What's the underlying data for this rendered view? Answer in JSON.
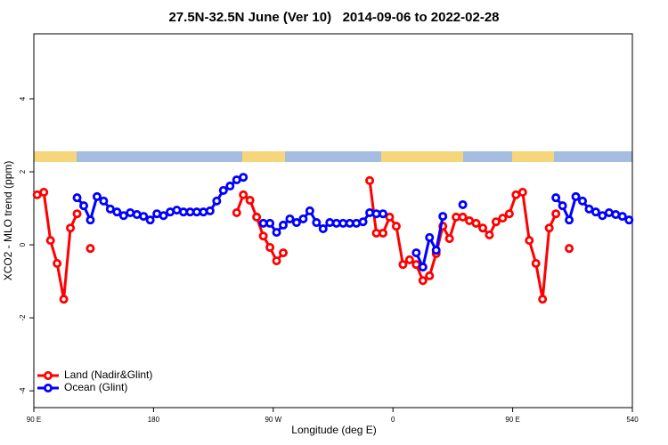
{
  "chart_data": {
    "type": "line",
    "title": "27.5N-32.5N June (Ver 10)   2014-09-06 to 2022-02-28",
    "x_label": "Longitude (deg E)",
    "y_label": "XCO2 - MLO trend (ppm)",
    "xlim": [
      90,
      540
    ],
    "ylim": [
      -4.46,
      5.78
    ],
    "xticks": [
      {
        "value": 90,
        "label": "90 E"
      },
      180,
      {
        "value": 270,
        "label": "90 W"
      },
      {
        "value": 360,
        "label": "0"
      },
      {
        "value": 450,
        "label": "90 E"
      },
      540
    ],
    "yticks": [
      -4,
      -2,
      0,
      2,
      4
    ],
    "legend": "bottom-left",
    "x": [
      92.5,
      97.5,
      102.5,
      107.5,
      112.5,
      117.5,
      122.5,
      127.5,
      132.5,
      137.5,
      142.5,
      147.5,
      152.5,
      157.5,
      162.5,
      167.5,
      172.5,
      177.5,
      182.5,
      187.5,
      192.5,
      197.5,
      202.5,
      207.5,
      212.5,
      217.5,
      222.5,
      227.5,
      232.5,
      237.5,
      242.5,
      247.5,
      252.5,
      257.5,
      262.5,
      267.5,
      272.5,
      277.5,
      282.5,
      287.5,
      292.5,
      297.5,
      302.5,
      307.5,
      312.5,
      317.5,
      322.5,
      327.5,
      332.5,
      337.5,
      342.5,
      347.5,
      352.5,
      357.5,
      362.5,
      367.5,
      372.5,
      377.5,
      382.5,
      387.5,
      392.5,
      397.5,
      402.5,
      407.5,
      412.5,
      417.5,
      422.5,
      427.5,
      432.5,
      437.5,
      442.5,
      447.5,
      452.5,
      457.5,
      462.5,
      467.5,
      472.5,
      477.5,
      482.5,
      487.5,
      492.5,
      497.5,
      502.5,
      507.5,
      512.5,
      517.5,
      522.5,
      527.5,
      532.5,
      537.5
    ],
    "series": [
      {
        "name": "Land (Nadir&Glint)",
        "color": "#ff0000",
        "values": [
          1.37,
          1.44,
          0.12,
          -0.51,
          -1.49,
          0.46,
          0.85,
          null,
          -0.1,
          null,
          null,
          null,
          null,
          null,
          null,
          null,
          null,
          null,
          null,
          null,
          null,
          null,
          null,
          null,
          null,
          null,
          null,
          null,
          null,
          null,
          0.88,
          1.37,
          1.22,
          0.76,
          0.24,
          -0.07,
          -0.44,
          -0.22,
          null,
          null,
          null,
          null,
          null,
          null,
          null,
          null,
          null,
          null,
          null,
          null,
          1.76,
          0.32,
          0.32,
          0.76,
          0.51,
          -0.54,
          -0.41,
          -0.54,
          -0.98,
          -0.85,
          -0.24,
          0.51,
          0.17,
          0.76,
          0.76,
          0.66,
          0.59,
          0.46,
          0.27,
          0.63,
          0.73,
          0.85,
          1.37,
          1.44,
          0.12,
          -0.51,
          -1.49,
          0.46,
          0.85,
          null,
          -0.1,
          null,
          null,
          null,
          null,
          null,
          null,
          null,
          null,
          null
        ]
      },
      {
        "name": "Ocean (Glint)",
        "color": "#0000ff",
        "values": [
          null,
          null,
          null,
          null,
          null,
          null,
          1.29,
          1.07,
          0.68,
          1.32,
          1.2,
          0.98,
          0.9,
          0.8,
          0.88,
          0.83,
          0.78,
          0.68,
          0.85,
          0.8,
          0.9,
          0.95,
          0.9,
          0.9,
          0.9,
          0.9,
          0.93,
          1.2,
          1.49,
          1.61,
          1.78,
          1.85,
          null,
          null,
          0.59,
          0.59,
          0.34,
          0.54,
          0.71,
          0.61,
          0.71,
          0.93,
          0.61,
          0.44,
          0.61,
          0.59,
          0.59,
          0.59,
          0.59,
          0.63,
          0.88,
          0.85,
          0.85,
          null,
          null,
          null,
          null,
          -0.22,
          -0.61,
          0.2,
          -0.15,
          0.78,
          null,
          null,
          1.1,
          null,
          null,
          null,
          null,
          null,
          null,
          null,
          null,
          null,
          null,
          null,
          null,
          null,
          1.29,
          1.07,
          0.68,
          1.32,
          1.2,
          0.98,
          0.9,
          0.8,
          0.88,
          0.83,
          0.78,
          0.68
        ]
      }
    ]
  }
}
